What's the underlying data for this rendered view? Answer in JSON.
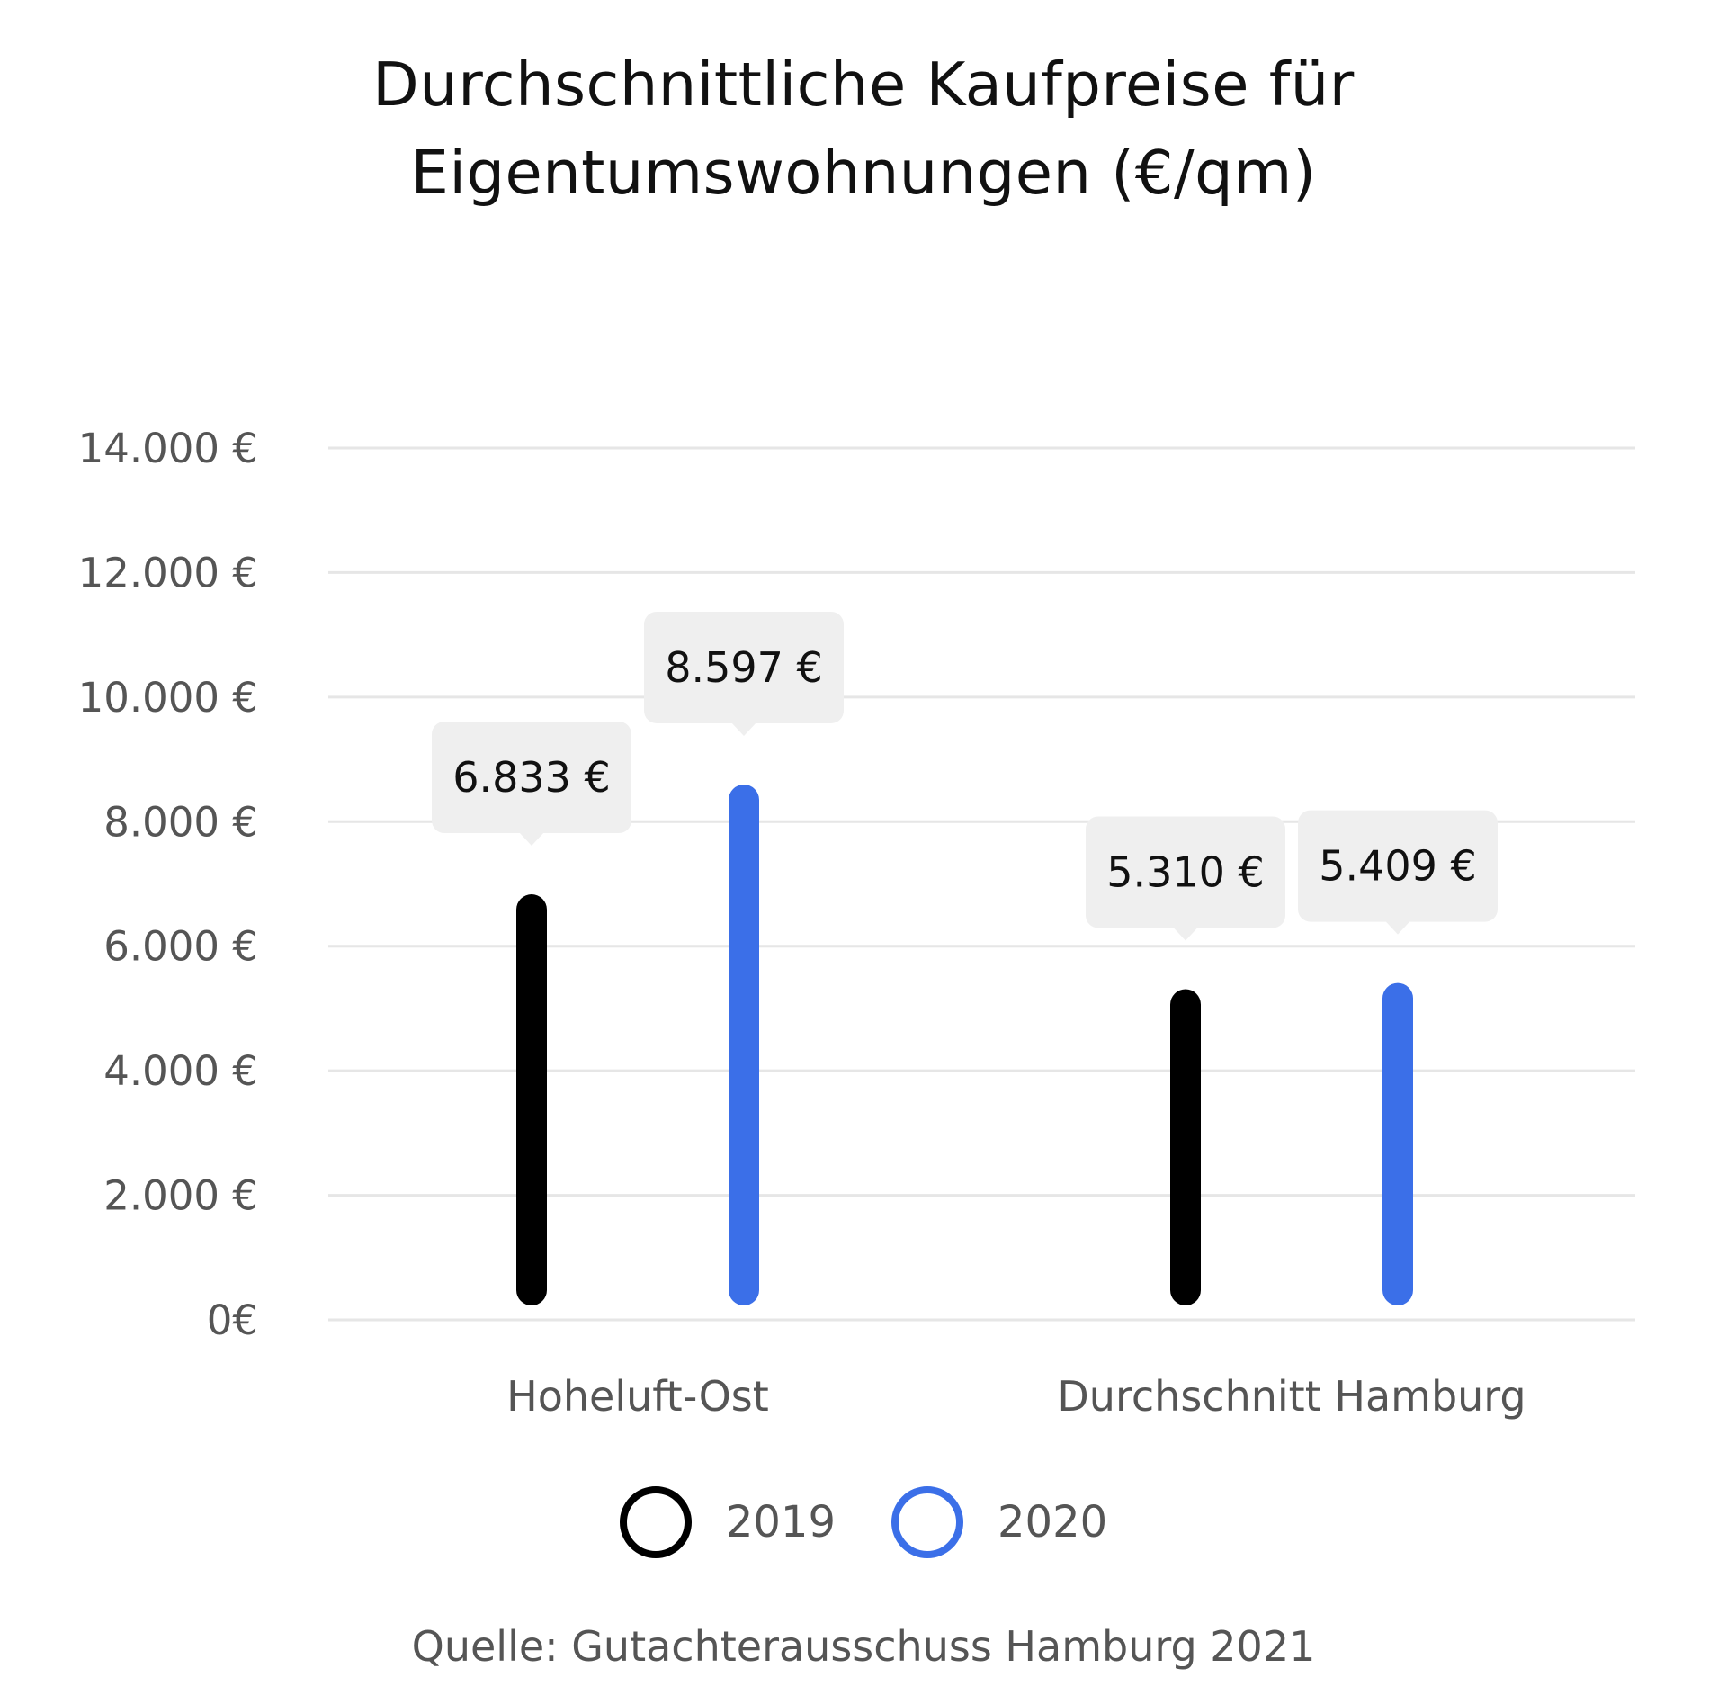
{
  "chart_data": {
    "type": "bar",
    "title_lines": [
      "Durchschnittliche Kaufpreise für",
      "Eigentumswohnungen (€/qm)"
    ],
    "categories": [
      "Hoheluft-Ost",
      "Durchschnitt Hamburg"
    ],
    "series": [
      {
        "name": "2019",
        "color": "#000000",
        "values": [
          6833,
          5310
        ],
        "labels": [
          "6.833 €",
          "5.310 €"
        ]
      },
      {
        "name": "2020",
        "color": "#3b6fe8",
        "values": [
          8597,
          5409
        ],
        "labels": [
          "8.597 €",
          "5.409 €"
        ]
      }
    ],
    "y_ticks": [
      {
        "value": 0,
        "label": "0€"
      },
      {
        "value": 2000,
        "label": "2.000 €"
      },
      {
        "value": 4000,
        "label": "4.000 €"
      },
      {
        "value": 6000,
        "label": "6.000 €"
      },
      {
        "value": 8000,
        "label": "8.000 €"
      },
      {
        "value": 10000,
        "label": "10.000 €"
      },
      {
        "value": 12000,
        "label": "12.000 €"
      },
      {
        "value": 14000,
        "label": "14.000 €"
      }
    ],
    "ylim": [
      0,
      14000
    ],
    "grid": true,
    "legend_position": "bottom-center",
    "gridline_color": "#e6e6e6",
    "label_box_color": "#efefef",
    "source": "Quelle: Gutachterausschuss Hamburg 2021"
  }
}
